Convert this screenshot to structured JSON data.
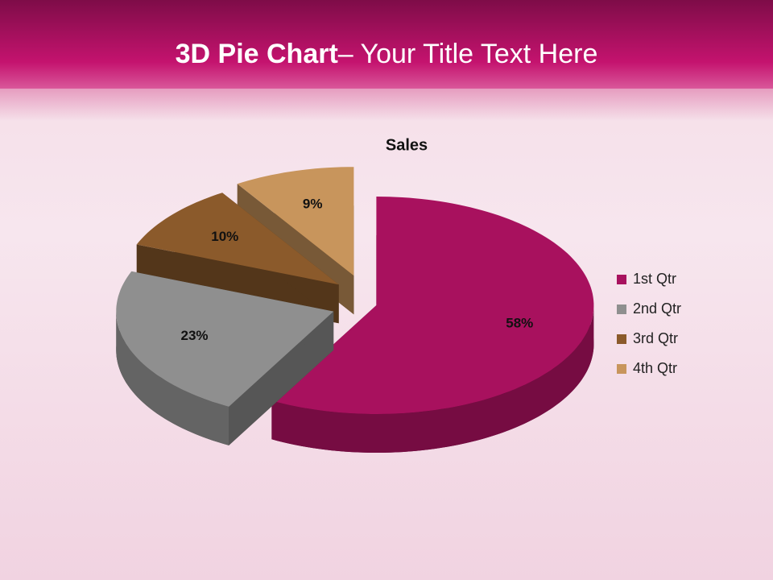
{
  "slide_title": {
    "bold": "3D Pie Chart",
    "regular": "– Your Title Text Here"
  },
  "chart_data": {
    "type": "pie",
    "title": "Sales",
    "categories": [
      "1st Qtr",
      "2nd Qtr",
      "3rd Qtr",
      "4th Qtr"
    ],
    "values": [
      58,
      23,
      10,
      9
    ],
    "value_labels": [
      "58%",
      "23%",
      "10%",
      "9%"
    ],
    "colors": [
      "#a8115e",
      "#8f8f8f",
      "#8b5a2b",
      "#c8955c"
    ],
    "legend": "right"
  }
}
